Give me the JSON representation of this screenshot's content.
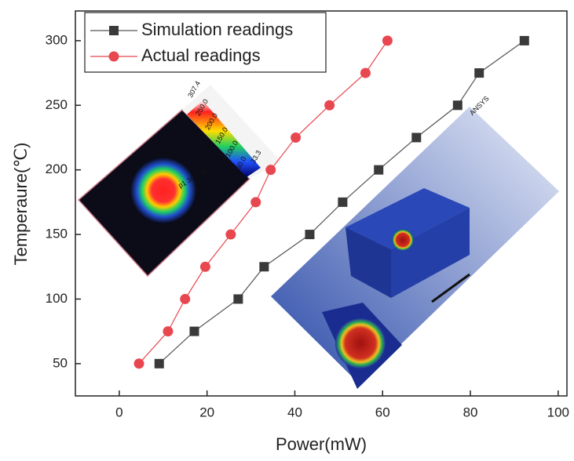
{
  "chart_data": {
    "type": "line",
    "x_label": "Power(mW)",
    "y_label": "Temperaure(℃)",
    "xlim": [
      -10,
      102
    ],
    "xticks": [
      0,
      20,
      40,
      60,
      80,
      100
    ],
    "ylim": [
      25,
      323
    ],
    "yticks": [
      50,
      100,
      150,
      200,
      250,
      300
    ],
    "legend": "upper left",
    "series": [
      {
        "name": "Simulation readings",
        "color": "#3a3a3a",
        "line_color": "#555555",
        "marker": "square",
        "x": [
          9.1,
          17.1,
          27.1,
          33,
          43.4,
          50.9,
          59.1,
          67.7,
          77.1,
          82,
          92.3
        ],
        "values": [
          50,
          75,
          100,
          125,
          150,
          175,
          200,
          225,
          250,
          275,
          300
        ]
      },
      {
        "name": "Actual readings",
        "color": "#e8474f",
        "line_color": "#e8474f",
        "marker": "circle",
        "x": [
          4.5,
          11.1,
          15,
          19.6,
          25.4,
          31.1,
          34.5,
          40.2,
          47.9,
          56.1,
          61.1
        ],
        "values": [
          50,
          75,
          100,
          125,
          150,
          175,
          200,
          225,
          250,
          275,
          300
        ]
      }
    ],
    "annotations": [
      "307.4",
      "250.0",
      "200.0",
      "150.0",
      "100.0",
      "50.0",
      "33.3",
      "p1  307.38",
      "ANSYS"
    ]
  }
}
